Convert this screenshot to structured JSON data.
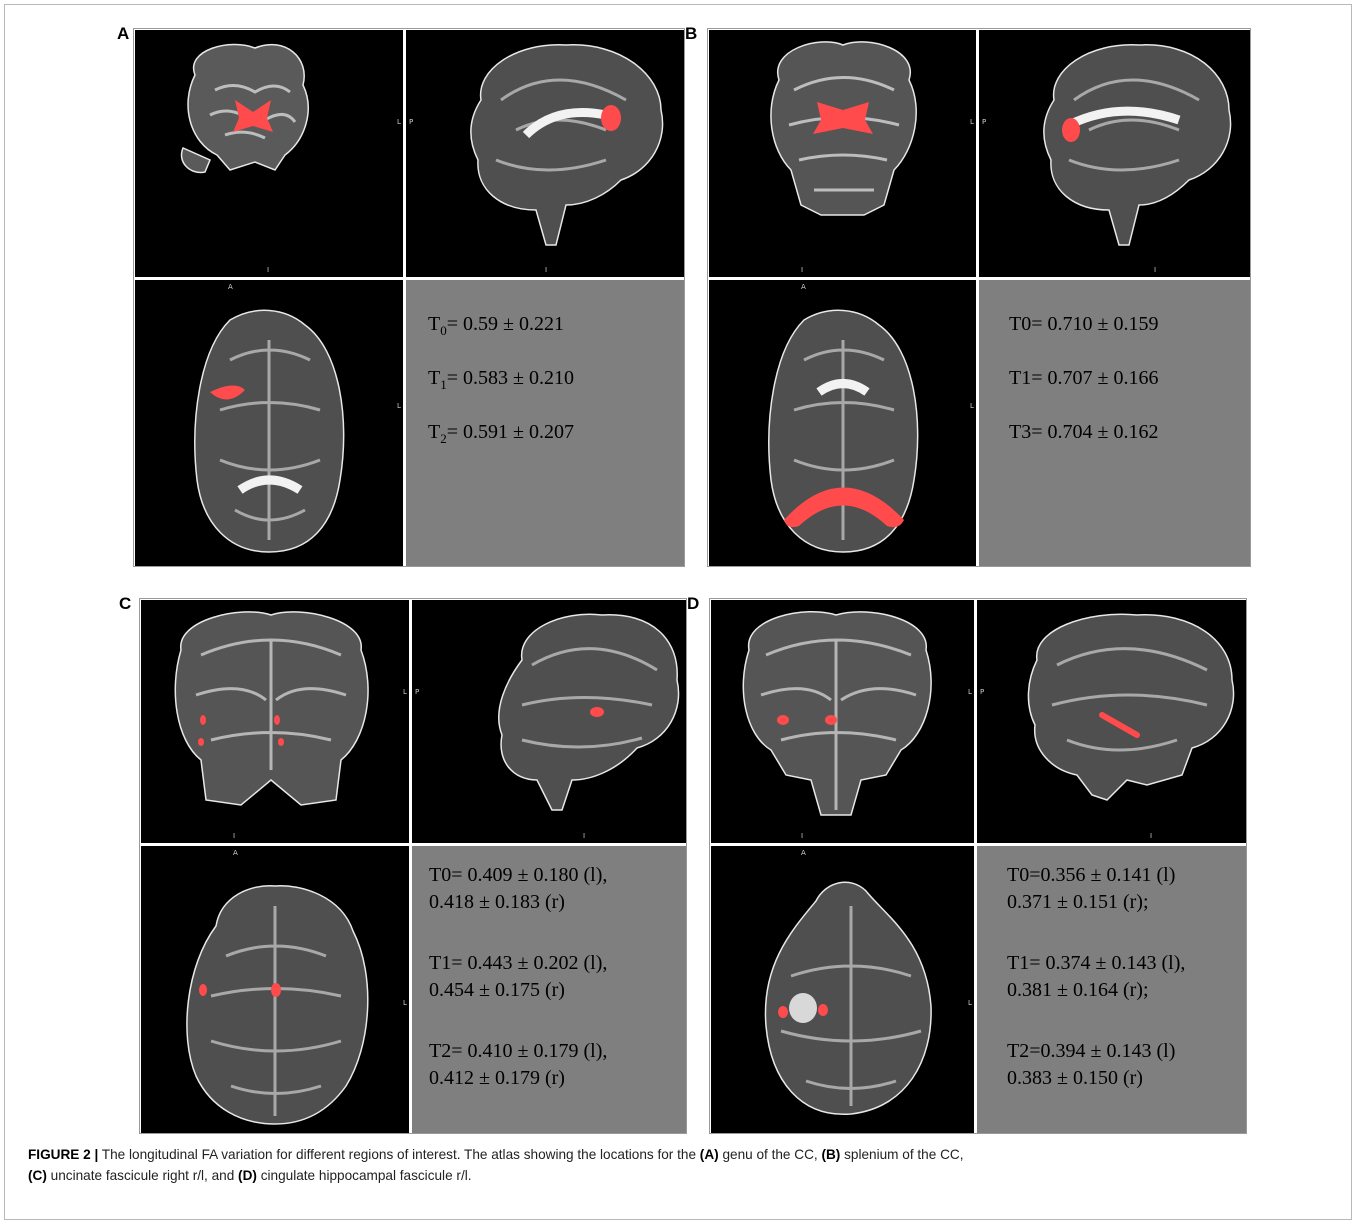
{
  "panels": {
    "A": {
      "label": "A",
      "orientation": {
        "coronal_right": "L",
        "coronal_bottom": "I",
        "sagittal_left": "P",
        "sagittal_bottom": "I",
        "axial_top": "A",
        "axial_right": "L"
      },
      "stats": [
        {
          "pre": "T",
          "sub": "0",
          "post": "= 0.59 ± 0.221"
        },
        {
          "pre": "T",
          "sub": "1",
          "post": "= 0.583 ± 0.210"
        },
        {
          "pre": "T",
          "sub": "2",
          "post": "= 0.591 ± 0.207"
        }
      ]
    },
    "B": {
      "label": "B",
      "orientation": {
        "coronal_right": "L",
        "coronal_bottom": "I",
        "sagittal_left": "P",
        "sagittal_bottom": "I",
        "axial_top": "A",
        "axial_right": "L"
      },
      "stats": [
        "T0= 0.710 ± 0.159",
        "T1= 0.707 ± 0.166",
        "T3= 0.704 ± 0.162"
      ]
    },
    "C": {
      "label": "C",
      "orientation": {
        "coronal_right": "L",
        "coronal_bottom": "I",
        "sagittal_left": "P",
        "sagittal_bottom": "I",
        "axial_top": "A",
        "axial_right": "L"
      },
      "stats": [
        "T0= 0.409 ± 0.180 (l),",
        "0.418 ± 0.183 (r)",
        "T1= 0.443 ± 0.202 (l),",
        "0.454 ± 0.175 (r)",
        "T2= 0.410 ± 0.179 (l),",
        "0.412 ± 0.179 (r)"
      ]
    },
    "D": {
      "label": "D",
      "orientation": {
        "coronal_right": "L",
        "coronal_bottom": "I",
        "sagittal_left": "P",
        "sagittal_bottom": "I",
        "axial_top": "A",
        "axial_right": "L"
      },
      "stats": [
        "T0=0.356 ± 0.141 (l)",
        "0.371 ± 0.151 (r);",
        "T1= 0.374 ± 0.143 (l),",
        "0.381 ± 0.164 (r);",
        "T2=0.394 ± 0.143 (l)",
        "0.383 ± 0.150 (r)"
      ]
    }
  },
  "caption": {
    "figure_label": "FIGURE 2 |",
    "text_1": " The longitudinal FA variation for different regions of interest. The atlas showing the locations for the ",
    "ref_a": "(A)",
    "text_2": " genu of the CC, ",
    "ref_b": "(B)",
    "text_3": " splenium of the CC, ",
    "ref_c": "(C)",
    "text_4": " uncinate fascicule right r/l, and ",
    "ref_d": "(D)",
    "text_5": " cingulate hippocampal fascicule r/l."
  },
  "colors": {
    "roi": "#ff4b4b",
    "stats_bg": "#7f7f7f",
    "view_bg": "#000000"
  }
}
